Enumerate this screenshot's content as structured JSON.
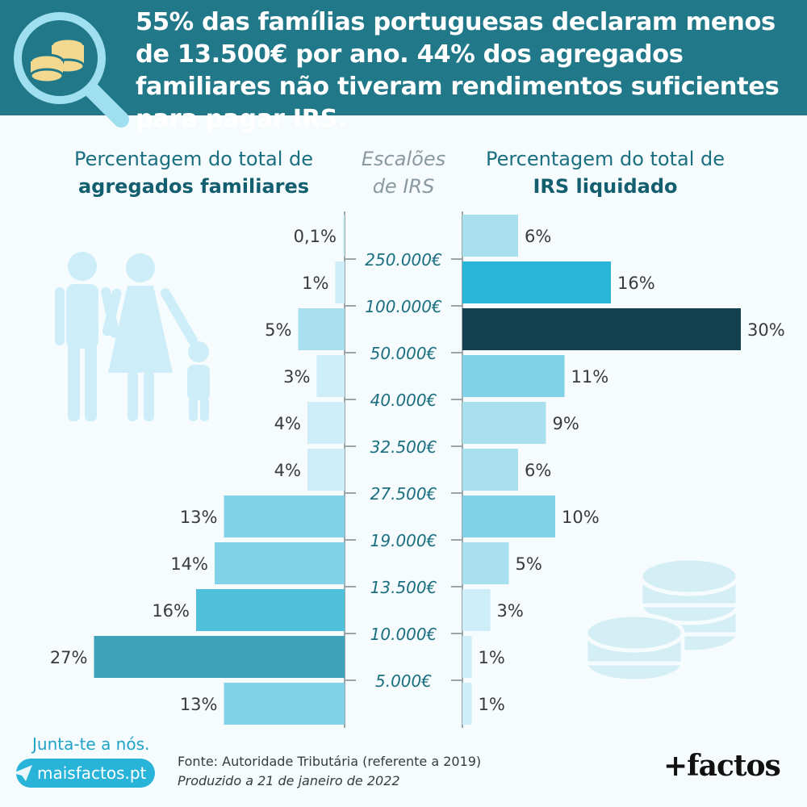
{
  "header": {
    "title": "55% das famílias portuguesas declaram menos de 13.500€ por ano. 44% dos agregados familiares não tiveram rendimentos suficientes para pagar IRS."
  },
  "columns": {
    "left_line1": "Percentagem do total de",
    "left_line2": "agregados familiares",
    "mid_line1": "Escalões",
    "mid_line2": "de IRS",
    "right_line1": "Percentagem do total de",
    "right_line2": "IRS liquidado"
  },
  "chart_data": {
    "type": "bar",
    "subtype": "butterfly",
    "x_unit": "%",
    "brackets": [
      "250.000€",
      "100.000€",
      "50.000€",
      "40.000€",
      "32.500€",
      "27.500€",
      "19.000€",
      "13.500€",
      "10.000€",
      "5.000€"
    ],
    "series": [
      {
        "name": "Percentagem do total de agregados familiares",
        "side": "left",
        "values": [
          0.1,
          1,
          5,
          3,
          4,
          4,
          13,
          14,
          16,
          27,
          13
        ],
        "labels": [
          "0,1%",
          "1%",
          "5%",
          "3%",
          "4%",
          "4%",
          "13%",
          "14%",
          "16%",
          "27%",
          "13%"
        ],
        "colors": [
          "#cdeef8",
          "#cdeef8",
          "#a8e0ef",
          "#cdeef8",
          "#cdeef8",
          "#cdeef8",
          "#7fd2e7",
          "#7fd2e7",
          "#50bfd9",
          "#3fa2bb",
          "#7fd2e7"
        ]
      },
      {
        "name": "Percentagem do total de IRS liquidado",
        "side": "right",
        "values": [
          6,
          16,
          30,
          11,
          9,
          6,
          10,
          5,
          3,
          1,
          1
        ],
        "labels": [
          "6%",
          "16%",
          "30%",
          "11%",
          "9%",
          "6%",
          "10%",
          "5%",
          "3%",
          "1%",
          "1%"
        ],
        "colors": [
          "#a8e0ef",
          "#28b5d9",
          "#14414f",
          "#7fd2e7",
          "#a8e0ef",
          "#a8e0ef",
          "#7fd2e7",
          "#a8e0ef",
          "#cdeef8",
          "#cdeef8",
          "#cdeef8"
        ]
      }
    ],
    "grid": false
  },
  "footer": {
    "join": "Junta-te a nós.",
    "site": "maisfactos.pt",
    "source": "Fonte: Autoridade Tributária (referente a 2019)",
    "produced": "Produzido a 21 de janeiro de 2022",
    "logo": "+factos"
  },
  "icons": [
    "magnifier-coins-icon",
    "family-icon",
    "coins-icon",
    "paper-plane-icon"
  ],
  "colors": {
    "header": "#207889",
    "title": "#ffffff",
    "heading": "#1a6f80",
    "bracket_label": "#1a6f80",
    "axis_line": "#9aa6aa",
    "background": "#f6fbfd"
  }
}
